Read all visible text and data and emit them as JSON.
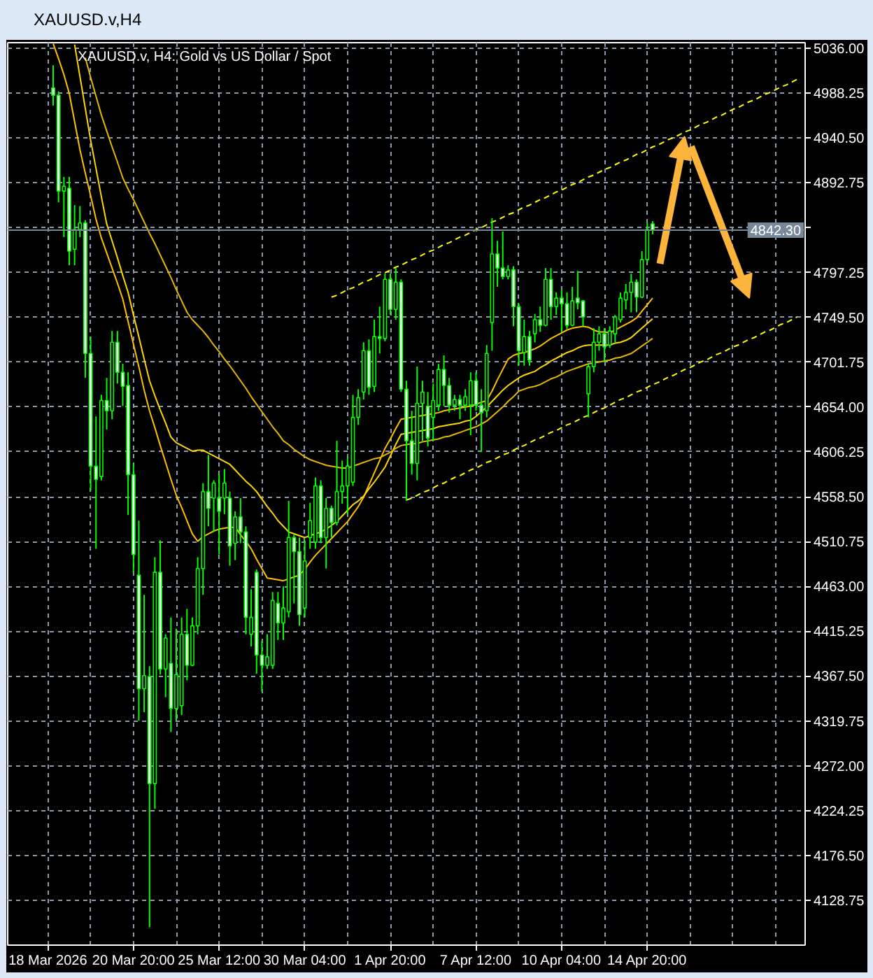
{
  "chart_data": {
    "type": "candlestick",
    "title": "XAUUSD.v,H4",
    "subtitle": "XAUUSD.v, H4: Gold vs US Dollar / Spot",
    "color": "#00ff00",
    "grid": true,
    "categories": [
      "18 Mar 2026",
      null,
      null,
      null,
      null,
      null,
      null,
      null,
      null,
      null,
      null,
      null,
      null,
      null,
      null,
      null,
      "20 Mar 20:00",
      null,
      null,
      null,
      null,
      null,
      null,
      null,
      null,
      null,
      null,
      null,
      null,
      null,
      null,
      null,
      "25 Mar 12:00",
      null,
      null,
      null,
      null,
      null,
      null,
      null,
      null,
      null,
      null,
      null,
      null,
      null,
      null,
      null,
      "30 Mar 04:00",
      null,
      null,
      null,
      null,
      null,
      null,
      null,
      null,
      null,
      null,
      null,
      null,
      null,
      null,
      null,
      "1 Apr 20:00",
      null,
      null,
      null,
      null,
      null,
      null,
      null,
      null,
      null,
      null,
      null,
      null,
      null,
      null,
      null,
      "7 Apr 12:00",
      null,
      null,
      null,
      null,
      null,
      null,
      null,
      null,
      null,
      null,
      null,
      null,
      null,
      null,
      null,
      "10 Apr 04:00",
      null,
      null,
      null,
      null,
      null,
      null,
      null,
      null,
      null,
      null,
      null,
      null,
      null,
      null,
      null,
      "14 Apr 20:00",
      null,
      null,
      null,
      null,
      null,
      null,
      null,
      null,
      null,
      null,
      null,
      null,
      null,
      null,
      null,
      null,
      null,
      null,
      null,
      null,
      null,
      null,
      null,
      null,
      null,
      null,
      null,
      null,
      null
    ],
    "ohlc": [
      null,
      [
        4994,
        5018,
        4975,
        4986
      ],
      [
        4986,
        4990,
        4872,
        4884
      ],
      [
        4884,
        4899,
        4835,
        4889
      ],
      [
        4887,
        4899,
        4805,
        4820
      ],
      [
        4822,
        4869,
        4805,
        4843
      ],
      [
        4843,
        4868,
        4835,
        4850
      ],
      [
        4850,
        4853,
        4685,
        4711
      ],
      [
        4711,
        4729,
        4565,
        4591
      ],
      [
        4591,
        4644,
        4503,
        4577
      ],
      [
        4580,
        4667,
        4576,
        4661
      ],
      [
        4661,
        4685,
        4630,
        4650
      ],
      [
        4650,
        4735,
        4641,
        4723
      ],
      [
        4723,
        4735,
        4679,
        4691
      ],
      [
        4691,
        4700,
        4655,
        4676
      ],
      [
        4677,
        4691,
        4539,
        4582
      ],
      [
        4582,
        4594,
        4478,
        4497
      ],
      [
        4475,
        4533,
        4320,
        4354
      ],
      [
        4354,
        4454,
        4329,
        4368
      ],
      [
        4367,
        4378,
        4100,
        4253
      ],
      [
        4253,
        4494,
        4226,
        4478
      ],
      [
        4478,
        4512,
        4369,
        4375
      ],
      [
        4375,
        4412,
        4345,
        4408
      ],
      [
        4381,
        4430,
        4308,
        4333
      ],
      [
        4333,
        4418,
        4320,
        4369
      ],
      [
        4336,
        4430,
        4326,
        4412
      ],
      [
        4412,
        4439,
        4363,
        4379
      ],
      [
        4379,
        4430,
        4378,
        4421
      ],
      [
        4421,
        4494,
        4412,
        4482
      ],
      [
        4482,
        4573,
        4454,
        4564
      ],
      [
        4564,
        4603,
        4527,
        4546
      ],
      [
        4557,
        4576,
        4521,
        4573
      ],
      [
        4557,
        4582,
        4497,
        4543
      ],
      [
        4557,
        4588,
        4540,
        4573
      ],
      [
        4557,
        4564,
        4485,
        4506
      ],
      [
        4509,
        4543,
        4491,
        4537
      ],
      [
        4537,
        4557,
        4509,
        4521
      ],
      [
        4521,
        4527,
        4412,
        4430
      ],
      [
        4412,
        4460,
        4399,
        4430
      ],
      [
        4478,
        4481,
        4370,
        4390
      ],
      [
        4390,
        4405,
        4351,
        4379
      ],
      [
        4379,
        4412,
        4375,
        4388
      ],
      [
        4379,
        4457,
        4375,
        4448
      ],
      [
        4445,
        4457,
        4406,
        4424
      ],
      [
        4424,
        4463,
        4406,
        4440
      ],
      [
        4436,
        4554,
        4430,
        4515
      ],
      [
        4515,
        4518,
        4445,
        4500
      ],
      [
        4500,
        4515,
        4421,
        4433
      ],
      [
        4440,
        4512,
        4430,
        4490
      ],
      [
        4515,
        4552,
        4503,
        4533
      ],
      [
        4510,
        4579,
        4503,
        4570
      ],
      [
        4570,
        4576,
        4509,
        4515
      ],
      [
        4515,
        4557,
        4482,
        4546
      ],
      [
        4546,
        4549,
        4515,
        4531
      ],
      [
        4531,
        4618,
        4528,
        4564
      ],
      [
        4564,
        4597,
        4551,
        4570
      ],
      [
        4570,
        4600,
        4540,
        4591
      ],
      [
        4574,
        4667,
        4570,
        4643
      ],
      [
        4643,
        4673,
        4635,
        4664
      ],
      [
        4670,
        4723,
        4662,
        4714
      ],
      [
        4714,
        4726,
        4667,
        4675
      ],
      [
        4676,
        4747,
        4670,
        4729
      ],
      [
        4729,
        4761,
        4711,
        4727
      ],
      [
        4727,
        4796,
        4724,
        4790
      ],
      [
        4790,
        4796,
        4752,
        4758
      ],
      [
        4758,
        4802,
        4747,
        4787
      ],
      [
        4787,
        4790,
        4670,
        4673
      ],
      [
        4673,
        4682,
        4554,
        4618
      ],
      [
        4618,
        4650,
        4582,
        4594
      ],
      [
        4594,
        4697,
        4576,
        4658
      ],
      [
        4658,
        4682,
        4618,
        4670
      ],
      [
        4655,
        4670,
        4612,
        4621
      ],
      [
        4643,
        4679,
        4618,
        4661
      ],
      [
        4656,
        4700,
        4650,
        4694
      ],
      [
        4694,
        4709,
        4655,
        4677
      ],
      [
        4677,
        4685,
        4648,
        4656
      ],
      [
        4656,
        4667,
        4650,
        4662
      ],
      [
        4662,
        4667,
        4641,
        4656
      ],
      [
        4656,
        4673,
        4650,
        4665
      ],
      [
        4656,
        4691,
        4624,
        4682
      ],
      [
        4682,
        4691,
        4650,
        4656
      ],
      [
        4656,
        4673,
        4606,
        4648
      ],
      [
        4650,
        4720,
        4643,
        4711
      ],
      [
        4744,
        4855,
        4714,
        4817
      ],
      [
        4817,
        4831,
        4782,
        4802
      ],
      [
        4802,
        4841,
        4790,
        4793
      ],
      [
        4793,
        4805,
        4790,
        4800
      ],
      [
        4800,
        4804,
        4740,
        4761
      ],
      [
        4761,
        4764,
        4698,
        4714
      ],
      [
        4712,
        4747,
        4698,
        4729
      ],
      [
        4729,
        4735,
        4698,
        4704
      ],
      [
        4732,
        4753,
        4723,
        4747
      ],
      [
        4747,
        4761,
        4734,
        4741
      ],
      [
        4741,
        4802,
        4740,
        4790
      ],
      [
        4790,
        4802,
        4747,
        4761
      ],
      [
        4761,
        4776,
        4752,
        4770
      ],
      [
        4770,
        4779,
        4734,
        4764
      ],
      [
        4764,
        4776,
        4737,
        4741
      ],
      [
        4741,
        4782,
        4740,
        4767
      ],
      [
        4770,
        4799,
        4758,
        4765
      ],
      [
        4767,
        4768,
        4740,
        4750
      ],
      [
        4668,
        4700,
        4643,
        4697
      ],
      [
        4697,
        4738,
        4691,
        4723
      ],
      [
        4723,
        4740,
        4714,
        4732
      ],
      [
        4732,
        4738,
        4702,
        4718
      ],
      [
        4720,
        4740,
        4717,
        4735
      ],
      [
        4732,
        4752,
        4723,
        4750
      ],
      [
        4747,
        4776,
        4744,
        4770
      ],
      [
        4768,
        4785,
        4758,
        4776
      ],
      [
        4776,
        4796,
        4755,
        4787
      ],
      [
        4787,
        4790,
        4755,
        4771
      ],
      [
        4771,
        4820,
        4770,
        4811
      ],
      [
        4811,
        4850,
        4808,
        4843
      ],
      [
        4849,
        4852,
        4838,
        4842.3
      ],
      null,
      null,
      null,
      null,
      null,
      null,
      null,
      null,
      null,
      null,
      null,
      null,
      null,
      null,
      null,
      null,
      null,
      null,
      null,
      null,
      null,
      null,
      null,
      null,
      null,
      null,
      null,
      null
    ],
    "colors": [
      null,
      "#ffffff",
      "#ffffff",
      "#000000",
      "#ffffff",
      "#000000",
      "#000000",
      "#ffffff",
      "#ffffff",
      "#ffffff",
      "#000000",
      "#ffffff",
      "#000000",
      "#ffffff",
      "#ffffff",
      "#ffffff",
      "#ffffff",
      "#ffffff",
      "#000000",
      "#ffffff",
      "#000000",
      "#ffffff",
      "#000000",
      "#ffffff",
      "#000000",
      "#000000",
      "#ffffff",
      "#000000",
      "#000000",
      "#000000",
      "#ffffff",
      "#000000",
      "#ffffff",
      "#000000",
      "#ffffff",
      "#000000",
      "#ffffff",
      "#ffffff",
      "#000000",
      "#ffffff",
      "#ffffff",
      "#000000",
      "#000000",
      "#ffffff",
      "#000000",
      "#000000",
      "#ffffff",
      "#ffffff",
      "#000000",
      "#000000",
      "#000000",
      "#ffffff",
      "#000000",
      "#ffffff",
      "#000000",
      "#000000",
      "#000000",
      "#000000",
      "#000000",
      "#000000",
      "#ffffff",
      "#000000",
      "#ffffff",
      "#000000",
      "#ffffff",
      "#000000",
      "#ffffff",
      "#ffffff",
      "#ffffff",
      "#000000",
      "#000000",
      "#ffffff",
      "#000000",
      "#000000",
      "#ffffff",
      "#ffffff",
      "#000000",
      "#ffffff",
      "#000000",
      "#000000",
      "#ffffff",
      "#ffffff",
      "#000000",
      "#000000",
      "#ffffff",
      "#ffffff",
      "#000000",
      "#ffffff",
      "#ffffff",
      "#000000",
      "#ffffff",
      "#000000",
      "#ffffff",
      "#000000",
      "#ffffff",
      "#000000",
      "#ffffff",
      "#ffffff",
      "#000000",
      "#ffffff",
      "#ffffff",
      "#000000",
      "#000000",
      "#000000",
      "#ffffff",
      "#000000",
      "#000000",
      "#000000",
      "#000000",
      "#000000",
      "#ffffff",
      "#000000",
      "#000000",
      "#ffffff",
      null,
      null,
      null,
      null,
      null,
      null,
      null,
      null,
      null,
      null,
      null,
      null,
      null,
      null,
      null,
      null,
      null,
      null,
      null,
      null,
      null,
      null,
      null,
      null,
      null,
      null,
      null,
      null
    ],
    "series": [
      {
        "type": "line",
        "color": "#ffc000",
        "values": [
          null,
          5041,
          5025,
          5008,
          4988,
          4958,
          4928,
          4903,
          4879,
          4854,
          4834,
          4818,
          4802,
          4786,
          4769,
          4745,
          4721,
          4697,
          4672,
          4650,
          4632,
          4613,
          4595,
          4577,
          4560,
          4547,
          4533,
          4519,
          4511,
          4516,
          4519,
          4522,
          4524,
          4525,
          4526,
          4526,
          4518,
          4511,
          4503,
          4492,
          4482,
          4472,
          4471,
          4470,
          4469,
          4471,
          4473,
          4475,
          4481,
          4489,
          4496,
          4502,
          4508,
          4514,
          4520,
          4526,
          4532,
          4540,
          4548,
          4558,
          4571,
          4584,
          4597,
          4610,
          4620,
          4631,
          4641,
          4642,
          4643,
          4644,
          4645,
          4646,
          4647,
          4648,
          4650,
          4651,
          4652,
          4653,
          4654,
          4655,
          4657,
          4659,
          4661,
          4671,
          4683,
          4694,
          4705,
          4709,
          4711,
          4712,
          4714,
          4716,
          4719,
          4723,
          4727,
          4730,
          4733,
          4736,
          4738,
          4739,
          4740,
          4739,
          4736,
          4734,
          4734,
          4733,
          4736,
          4739,
          4742,
          4745,
          4749,
          4756,
          4763,
          4770,
          null,
          null,
          null,
          null,
          null,
          null,
          null,
          null,
          null,
          null,
          null,
          null,
          null,
          null,
          null,
          null,
          null,
          null,
          null,
          null,
          null,
          null,
          null,
          null,
          null,
          null,
          null,
          null
        ]
      },
      {
        "type": "line",
        "color": "#ffd700",
        "values": [
          null,
          null,
          null,
          null,
          null,
          5040,
          5006,
          4972,
          4938,
          4908,
          4878,
          4849,
          4831,
          4813,
          4794,
          4776,
          4752,
          4729,
          4705,
          4682,
          4666,
          4651,
          4637,
          4622,
          4616,
          4613,
          4610,
          4607,
          4608,
          4608,
          4605,
          4602,
          4599,
          4596,
          4593,
          4587,
          4581,
          4575,
          4570,
          4564,
          4556,
          4548,
          4541,
          4533,
          4527,
          4521,
          4519,
          4517,
          4515,
          4517,
          4519,
          4521,
          4524,
          4528,
          4532,
          4538,
          4544,
          4550,
          4554,
          4559,
          4567,
          4574,
          4582,
          4590,
          4602,
          4614,
          4625,
          4626,
          4627,
          4628,
          4629,
          4630,
          4631,
          4633,
          4634,
          4635,
          4636,
          4637,
          4639,
          4640,
          4644,
          4649,
          4654,
          4660,
          4666,
          4672,
          4677,
          4681,
          4685,
          4688,
          4690,
          4692,
          4696,
          4699,
          4703,
          4706,
          4709,
          4712,
          4714,
          4717,
          4719,
          4720,
          4720,
          4720,
          4720,
          4720,
          4722,
          4723,
          4725,
          4728,
          4733,
          4738,
          4743,
          4748,
          null,
          null,
          null,
          null,
          null,
          null,
          null,
          null,
          null,
          null,
          null,
          null,
          null,
          null,
          null,
          null,
          null,
          null,
          null,
          null,
          null,
          null,
          null,
          null,
          null,
          null,
          null,
          null
        ]
      },
      {
        "type": "line",
        "color": "#e6b800",
        "values": [
          null,
          null,
          null,
          null,
          null,
          null,
          null,
          5026,
          5005,
          4985,
          4965,
          4948,
          4931,
          4915,
          4898,
          4886,
          4875,
          4863,
          4851,
          4839,
          4828,
          4816,
          4804,
          4792,
          4779,
          4767,
          4755,
          4747,
          4741,
          4735,
          4728,
          4720,
          4713,
          4705,
          4698,
          4690,
          4682,
          4674,
          4665,
          4657,
          4649,
          4641,
          4633,
          4626,
          4618,
          4614,
          4609,
          4605,
          4601,
          4598,
          4596,
          4594,
          4592,
          4591,
          4590,
          4589,
          4589,
          4591,
          4593,
          4595,
          4597,
          4599,
          4600,
          4603,
          4606,
          4610,
          4613,
          4614,
          4615,
          4615,
          4617,
          4618,
          4619,
          4620,
          4622,
          4623,
          4625,
          4627,
          4629,
          4631,
          4633,
          4636,
          4639,
          4644,
          4649,
          4654,
          4660,
          4665,
          4671,
          4673,
          4675,
          4676,
          4678,
          4681,
          4684,
          4686,
          4689,
          4692,
          4694,
          4696,
          4698,
          4700,
          4701,
          4702,
          4703,
          4704,
          4706,
          4707,
          4709,
          4711,
          4715,
          4719,
          4723,
          4727,
          null,
          null,
          null,
          null,
          null,
          null,
          null,
          null,
          null,
          null,
          null,
          null,
          null,
          null,
          null,
          null,
          null,
          null,
          null,
          null,
          null,
          null,
          null,
          null,
          null,
          null,
          null,
          null
        ]
      },
      {
        "type": "line",
        "color": "#ffff00",
        "line_style": "dashed",
        "values": [
          null,
          null,
          null,
          null,
          null,
          null,
          null,
          null,
          null,
          null,
          null,
          null,
          null,
          null,
          null,
          null,
          null,
          null,
          null,
          null,
          null,
          null,
          null,
          null,
          null,
          null,
          null,
          null,
          null,
          null,
          null,
          null,
          null,
          null,
          null,
          null,
          null,
          null,
          null,
          null,
          null,
          null,
          null,
          null,
          null,
          null,
          null,
          null,
          null,
          null,
          null,
          null,
          null,
          4771,
          4773,
          4776,
          4779,
          4781,
          4784,
          4787,
          4789,
          4792,
          4795,
          4797,
          4800,
          4803,
          4805,
          4808,
          4811,
          4813,
          4816,
          4819,
          4821,
          4824,
          4827,
          4829,
          4832,
          4835,
          4837,
          4840,
          4843,
          4845,
          4848,
          4851,
          4853,
          4856,
          4859,
          4861,
          4864,
          4867,
          4869,
          4872,
          4875,
          4877,
          4880,
          4883,
          4885,
          4888,
          4891,
          4893,
          4896,
          4899,
          4901,
          4904,
          4907,
          4909,
          4912,
          4915,
          4917,
          4920,
          4923,
          4925,
          4928,
          4931,
          4933,
          4936,
          4939,
          4941,
          4944,
          4947,
          4949,
          4952,
          4955,
          4957,
          4960,
          4963,
          4965,
          4968,
          4971,
          4973,
          4976,
          4979,
          4981,
          4984,
          4987,
          4989,
          4992,
          4995,
          4997,
          5000,
          5003,
          null
        ]
      },
      {
        "type": "line",
        "color": "#ffff00",
        "line_style": "dashed",
        "values": [
          null,
          null,
          null,
          null,
          null,
          null,
          null,
          null,
          null,
          null,
          null,
          null,
          null,
          null,
          null,
          null,
          null,
          null,
          null,
          null,
          null,
          null,
          null,
          null,
          null,
          null,
          null,
          null,
          null,
          null,
          null,
          null,
          null,
          null,
          null,
          null,
          null,
          null,
          null,
          null,
          null,
          null,
          null,
          null,
          null,
          null,
          null,
          null,
          null,
          null,
          null,
          null,
          null,
          null,
          null,
          null,
          null,
          null,
          null,
          null,
          null,
          null,
          null,
          null,
          null,
          null,
          null,
          4555,
          4557,
          4560,
          4563,
          4565,
          4568,
          4571,
          4573,
          4576,
          4579,
          4581,
          4584,
          4587,
          4589,
          4592,
          4595,
          4597,
          4600,
          4603,
          4605,
          4608,
          4611,
          4613,
          4616,
          4619,
          4621,
          4624,
          4627,
          4629,
          4632,
          4635,
          4637,
          4640,
          4643,
          4645,
          4648,
          4651,
          4653,
          4656,
          4659,
          4662,
          4664,
          4667,
          4670,
          4672,
          4675,
          4678,
          4680,
          4683,
          4686,
          4688,
          4691,
          4694,
          4696,
          4699,
          4702,
          4704,
          4707,
          4710,
          4712,
          4715,
          4718,
          4720,
          4723,
          4726,
          4728,
          4731,
          4734,
          4736,
          4739,
          4742,
          4744,
          4747,
          4750,
          null
        ]
      }
    ],
    "ylim": [
      4081,
      5042
    ],
    "yticks": [
      4128.75,
      {
        "value": 4176.5,
        "label": "4176.50"
      },
      4224.25,
      {
        "value": 4272,
        "label": "4272.00"
      },
      4319.75,
      {
        "value": 4367.5,
        "label": "4367.50"
      },
      4415.25,
      {
        "value": 4463,
        "label": "4463.00"
      },
      4510.75,
      {
        "value": 4558.5,
        "label": "4558.50"
      },
      4606.25,
      {
        "value": 4654,
        "label": "4654.00"
      },
      4701.75,
      {
        "value": 4749.5,
        "label": "4749.50"
      },
      4797.25,
      {
        "value": 4845,
        "label": null
      },
      4892.75,
      {
        "value": 4940.5,
        "label": "4940.50"
      },
      4988.25,
      {
        "value": 5036,
        "label": "5036.00"
      }
    ],
    "ref_lines": [
      {
        "axis": "y",
        "value": 4842.3,
        "label": "4842.30",
        "color": "#778899"
      }
    ]
  }
}
